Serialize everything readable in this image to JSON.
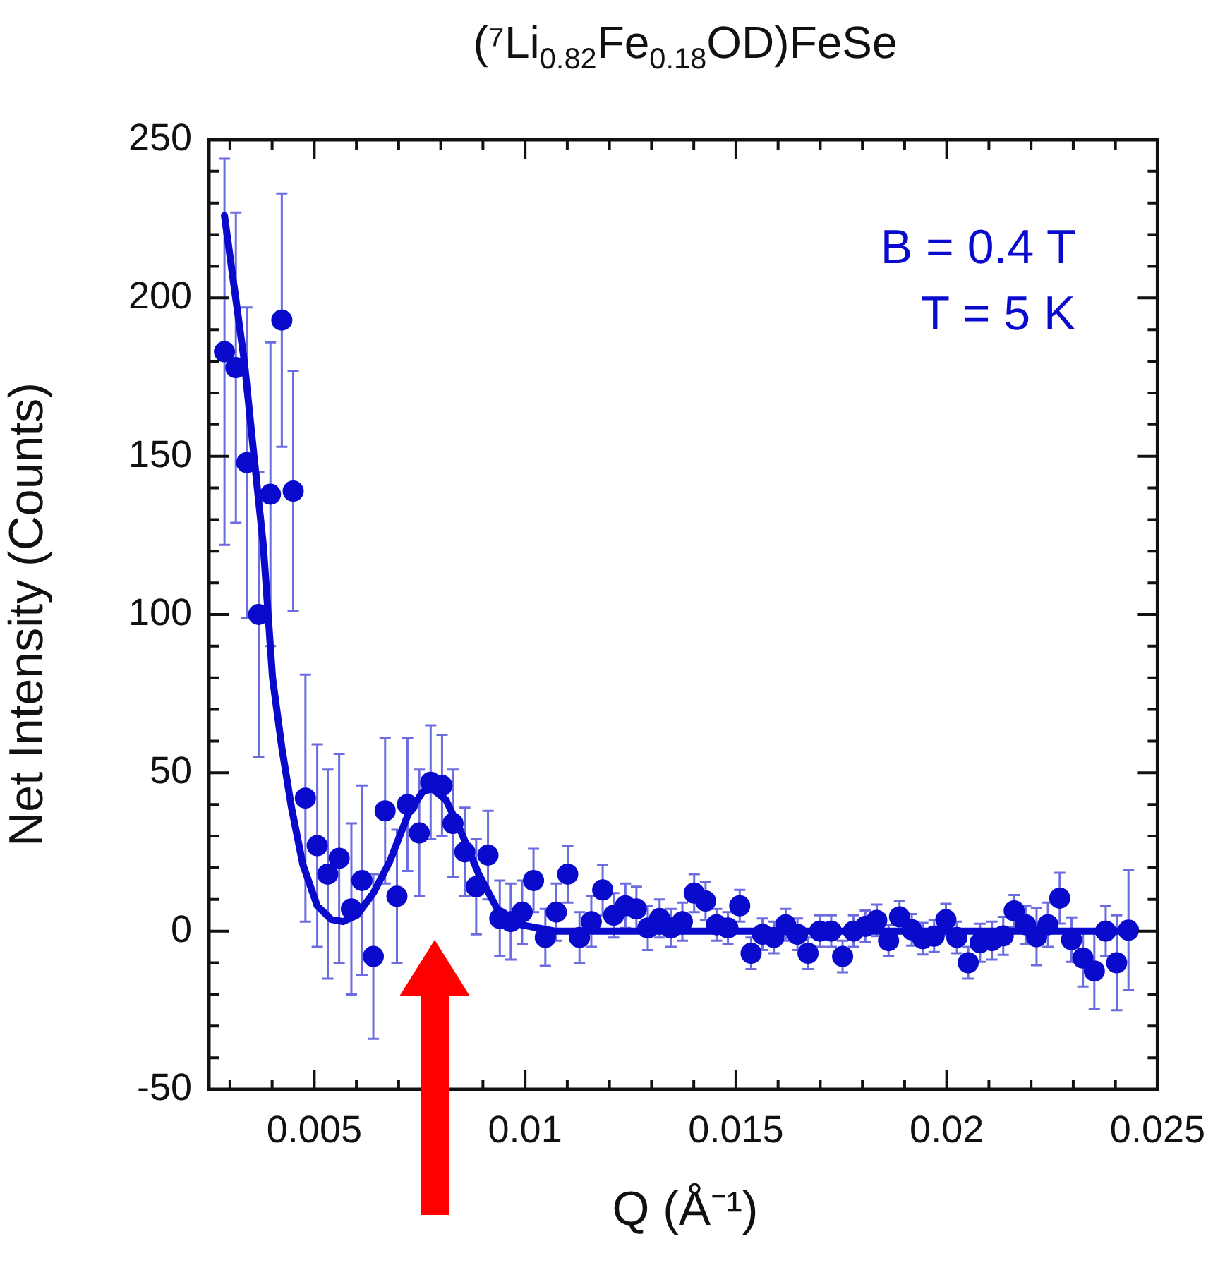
{
  "chart_data": {
    "type": "scatter",
    "title": "(⁷Li$_{0.82}$Fe$_{0.18}$OD)FeSe",
    "xlabel": "Q (Å⁻¹)",
    "ylabel": "Net Intensity (Counts)",
    "annotations": [
      "B = 0.4 T",
      "T = 5 K"
    ],
    "xlim": [
      0.0025,
      0.025
    ],
    "ylim": [
      -50,
      250
    ],
    "xticks": [
      {
        "value": 0.003,
        "label": null
      },
      {
        "value": 0.004,
        "label": null
      },
      {
        "value": 0.005,
        "label": "0.005"
      },
      {
        "value": 0.006,
        "label": null
      },
      {
        "value": 0.007,
        "label": null
      },
      {
        "value": 0.008,
        "label": null
      },
      {
        "value": 0.009,
        "label": null
      },
      {
        "value": 0.01,
        "label": "0.01"
      },
      {
        "value": 0.011,
        "label": null
      },
      {
        "value": 0.012,
        "label": null
      },
      {
        "value": 0.013,
        "label": null
      },
      {
        "value": 0.014,
        "label": null
      },
      {
        "value": 0.015,
        "label": "0.015"
      },
      {
        "value": 0.016,
        "label": null
      },
      {
        "value": 0.017,
        "label": null
      },
      {
        "value": 0.018,
        "label": null
      },
      {
        "value": 0.019,
        "label": null
      },
      {
        "value": 0.02,
        "label": "0.02"
      },
      {
        "value": 0.021,
        "label": null
      },
      {
        "value": 0.022,
        "label": null
      },
      {
        "value": 0.023,
        "label": null
      },
      {
        "value": 0.024,
        "label": null
      },
      {
        "value": 0.025,
        "label": "0.025"
      }
    ],
    "yticks": [
      -50,
      {
        "value": -40,
        "label": null
      },
      {
        "value": -30,
        "label": null
      },
      {
        "value": -20,
        "label": null
      },
      {
        "value": -10,
        "label": null
      },
      0,
      {
        "value": 10,
        "label": null
      },
      {
        "value": 20,
        "label": null
      },
      {
        "value": 30,
        "label": null
      },
      {
        "value": 40,
        "label": null
      },
      50,
      {
        "value": 60,
        "label": null
      },
      {
        "value": 70,
        "label": null
      },
      {
        "value": 80,
        "label": null
      },
      {
        "value": 90,
        "label": null
      },
      100,
      {
        "value": 110,
        "label": null
      },
      {
        "value": 120,
        "label": null
      },
      {
        "value": 130,
        "label": null
      },
      {
        "value": 140,
        "label": null
      },
      150,
      {
        "value": 160,
        "label": null
      },
      {
        "value": 170,
        "label": null
      },
      {
        "value": 180,
        "label": null
      },
      {
        "value": 190,
        "label": null
      },
      200,
      {
        "value": 210,
        "label": null
      },
      {
        "value": 220,
        "label": null
      },
      {
        "value": 230,
        "label": null
      },
      {
        "value": 240,
        "label": null
      },
      250
    ],
    "grid": false,
    "legend": false,
    "series": [
      {
        "marker": "circle",
        "color": "#0a0acd",
        "x": [
          0.00287,
          0.00314,
          0.0034,
          0.00368,
          0.00396,
          0.00423,
          0.0045,
          0.00479,
          0.00507,
          0.00532,
          0.00559,
          0.00588,
          0.00613,
          0.0064,
          0.00668,
          0.00696,
          0.00721,
          0.00749,
          0.00776,
          0.00803,
          0.00829,
          0.00857,
          0.00884,
          0.00912,
          0.0094,
          0.00966,
          0.00993,
          0.0102,
          0.01048,
          0.01074,
          0.01101,
          0.01129,
          0.01157,
          0.01184,
          0.0121,
          0.01238,
          0.01264,
          0.01291,
          0.01319,
          0.01346,
          0.01373,
          0.01401,
          0.01428,
          0.01454,
          0.01481,
          0.01509,
          0.01536,
          0.01563,
          0.0159,
          0.01618,
          0.01646,
          0.01671,
          0.01699,
          0.01726,
          0.01753,
          0.01779,
          0.01807,
          0.01834,
          0.01862,
          0.01888,
          0.01917,
          0.01943,
          0.0197,
          0.01998,
          0.02024,
          0.02051,
          0.02079,
          0.02107,
          0.02134,
          0.0216,
          0.02187,
          0.02213,
          0.0224,
          0.02268,
          0.02296,
          0.02323,
          0.0235,
          0.02377,
          0.02403,
          0.02431
        ],
        "values": [
          183,
          178,
          148,
          100,
          138,
          193,
          139,
          42,
          27,
          18,
          23,
          7,
          16,
          -8,
          38,
          11,
          40,
          31,
          47,
          46,
          34,
          25,
          14,
          24,
          4,
          3,
          6,
          16,
          -2,
          6,
          18,
          -2,
          3,
          13,
          5,
          8,
          7,
          1,
          4,
          1,
          3,
          12,
          9.5,
          2,
          1,
          8,
          -7,
          -1,
          -2,
          2,
          -1,
          -7,
          0,
          0,
          -8,
          0,
          1.5,
          3.4,
          -3,
          4.5,
          0.4,
          -2.4,
          -1.6,
          3.6,
          -2,
          -10,
          -3.7,
          -3,
          -1.5,
          6.4,
          2,
          -1.8,
          2,
          10.4,
          -2.7,
          -8.5,
          -12.6,
          0,
          -10,
          0.3
        ],
        "errors": [
          61,
          49,
          49,
          45,
          48,
          40,
          38,
          39,
          32,
          33,
          33,
          27,
          30,
          26,
          23,
          21,
          21,
          20,
          18,
          16,
          17,
          14,
          15,
          14,
          12,
          12,
          10,
          10,
          9,
          9,
          9,
          8,
          8,
          8,
          7,
          7,
          7,
          7,
          6,
          6,
          6,
          6,
          6,
          5,
          5,
          5,
          5,
          5,
          5,
          5,
          5,
          5,
          5,
          5,
          5,
          5,
          5,
          5,
          5,
          5,
          5,
          5,
          5,
          5,
          5,
          5,
          6,
          6,
          6,
          5,
          6,
          9,
          7,
          8,
          7,
          9,
          12,
          8,
          15,
          19
        ]
      },
      {
        "type": "line",
        "marker": "none",
        "color": "#0a0acd",
        "x": [
          0.00287,
          0.00334,
          0.00357,
          0.00379,
          0.00401,
          0.00423,
          0.00446,
          0.00473,
          0.00507,
          0.0054,
          0.00568,
          0.00601,
          0.0064,
          0.00679,
          0.00723,
          0.00757,
          0.00779,
          0.00812,
          0.00846,
          0.0089,
          0.00934,
          0.0099,
          0.0107,
          0.0244
        ],
        "values": [
          226,
          180,
          150,
          122,
          80,
          58,
          39,
          21,
          8,
          3.7,
          3,
          5,
          12,
          22,
          37,
          44,
          45,
          41.5,
          32,
          18,
          7,
          2,
          0,
          0
        ]
      }
    ]
  }
}
